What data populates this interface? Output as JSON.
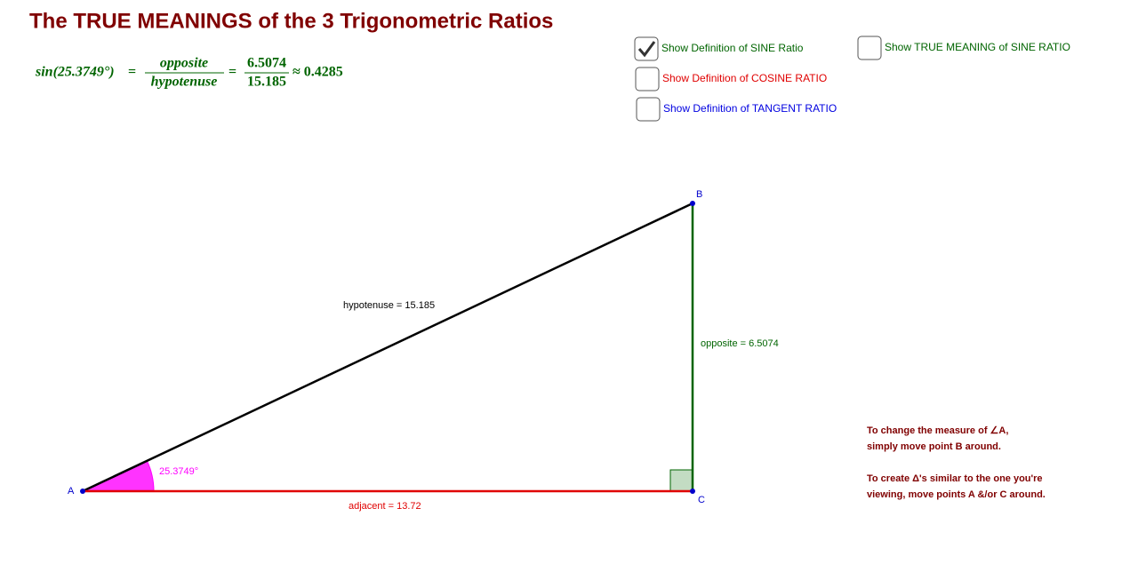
{
  "header": {
    "title": "The TRUE MEANINGS of the 3 Trigonometric Ratios"
  },
  "formula": {
    "lhs": "sin(25.3749°)",
    "eq1": "=",
    "num1": "opposite",
    "den1": "hypotenuse",
    "eq2": "=",
    "num2": "6.5074",
    "den2": "15.185",
    "approx": "≈ 0.4285"
  },
  "checkboxes": [
    {
      "label": "Show Definition of SINE Ratio",
      "checked": true
    },
    {
      "label": "Show Definition of COSINE RATIO",
      "checked": false
    },
    {
      "label": "Show Definition of TANGENT RATIO",
      "checked": false
    },
    {
      "label": "Show TRUE MEANING of SINE RATIO",
      "checked": false
    }
  ],
  "triangle": {
    "points": [
      "A",
      "B",
      "C"
    ],
    "hypotenuse": "hypotenuse = 15.185",
    "opposite": "opposite = 6.5074",
    "adjacent": "adjacent = 13.72",
    "angle": "25.3749°"
  },
  "notes": [
    "To change the measure of ∠A,",
    "simply move point B around.",
    "To create Δ's similar to the one you're",
    "viewing, move points A &/or C around."
  ]
}
